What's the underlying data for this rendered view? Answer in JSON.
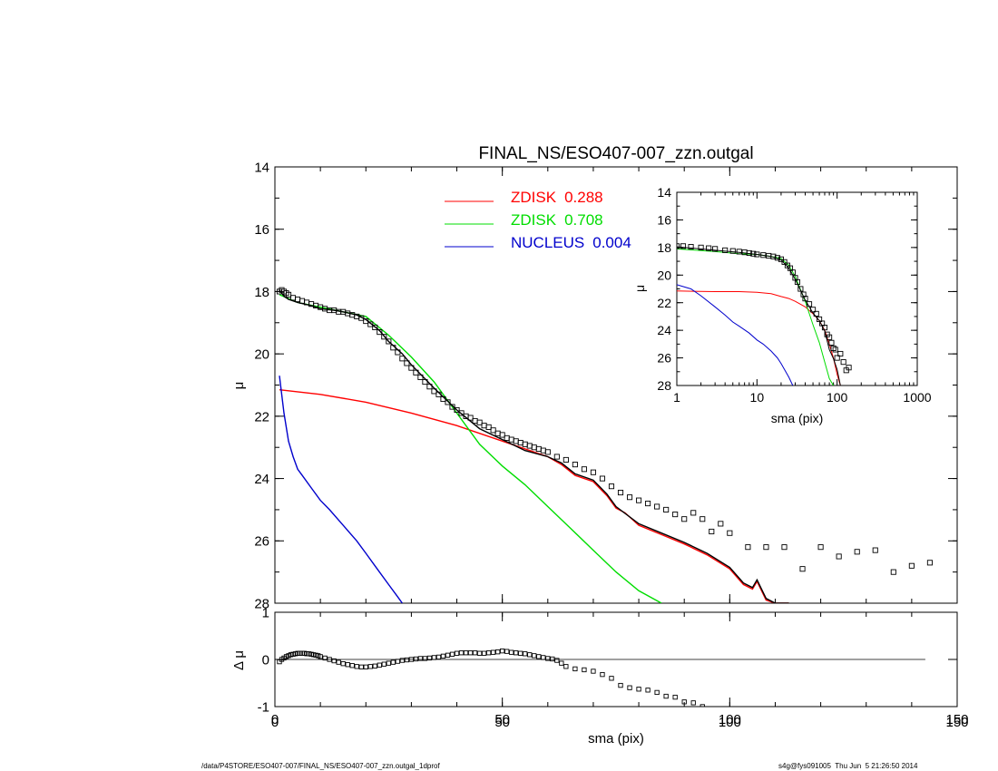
{
  "chart_data": [
    {
      "id": "main",
      "type": "line",
      "title": "FINAL_NS/ESO407-007_zzn.outgal",
      "xlabel": "",
      "ylabel": "μ",
      "xlim": [
        0,
        150
      ],
      "ylim": [
        28,
        14
      ],
      "xticks": [
        "0",
        "50",
        "100",
        "150"
      ],
      "yticks": [
        "14",
        "16",
        "18",
        "20",
        "22",
        "24",
        "26",
        "28"
      ],
      "legend": [
        {
          "label": "ZDISK",
          "value": "0.288",
          "color": "#ff0000"
        },
        {
          "label": "ZDISK",
          "value": "0.708",
          "color": "#00dd00"
        },
        {
          "label": "NUCLEUS",
          "value": "0.004",
          "color": "#0000cc"
        }
      ],
      "series": [
        {
          "color": "#ff0000",
          "style": "line",
          "x": [
            1,
            10,
            20,
            30,
            40,
            50,
            60,
            63,
            66,
            70,
            73,
            75,
            77,
            80,
            85,
            90,
            95,
            100,
            103,
            105,
            106,
            108,
            110,
            112,
            113
          ],
          "y": [
            21.15,
            21.3,
            21.55,
            21.9,
            22.3,
            22.8,
            23.3,
            23.55,
            23.9,
            24.1,
            24.55,
            24.95,
            25.1,
            25.5,
            25.8,
            26.1,
            26.45,
            26.9,
            27.4,
            27.55,
            27.3,
            27.9,
            28.0,
            28.0,
            28.0
          ]
        },
        {
          "color": "#00dd00",
          "style": "line",
          "x": [
            1,
            5,
            10,
            15,
            20,
            25,
            30,
            35,
            40,
            45,
            50,
            55,
            60,
            65,
            70,
            75,
            80,
            85
          ],
          "y": [
            18.1,
            18.35,
            18.5,
            18.65,
            18.8,
            19.4,
            20.1,
            20.9,
            21.9,
            22.9,
            23.6,
            24.2,
            24.9,
            25.6,
            26.3,
            27.0,
            27.6,
            28.0
          ]
        },
        {
          "color": "#0000cc",
          "style": "line",
          "x": [
            1,
            2,
            3,
            4,
            5,
            6,
            8,
            10,
            12,
            15,
            18,
            20,
            22,
            25,
            27,
            28
          ],
          "y": [
            20.7,
            21.9,
            22.8,
            23.3,
            23.7,
            23.9,
            24.3,
            24.7,
            25.0,
            25.5,
            26.0,
            26.4,
            26.8,
            27.4,
            27.8,
            28.0
          ]
        },
        {
          "color": "#000000",
          "style": "line",
          "x": [
            1,
            2,
            3,
            5,
            8,
            10,
            13,
            15,
            18,
            20,
            23,
            25,
            28,
            30,
            35,
            40,
            45,
            50,
            55,
            60,
            63,
            66,
            70,
            73,
            75,
            80,
            85,
            90,
            95,
            100,
            103,
            105,
            106,
            108,
            110,
            112,
            113
          ],
          "y": [
            17.95,
            18.15,
            18.25,
            18.35,
            18.45,
            18.55,
            18.6,
            18.65,
            18.75,
            18.9,
            19.25,
            19.6,
            20.0,
            20.35,
            21.1,
            21.8,
            22.4,
            22.75,
            23.1,
            23.3,
            23.5,
            23.85,
            24.05,
            24.5,
            24.9,
            25.45,
            25.75,
            26.05,
            26.4,
            26.85,
            27.35,
            27.5,
            27.25,
            27.85,
            28.0,
            28.0,
            28.0
          ]
        },
        {
          "color": "#000000",
          "style": "markers",
          "x": [
            1,
            1.5,
            2,
            2.5,
            3,
            4,
            5,
            6,
            7,
            8,
            9,
            10,
            11,
            12,
            13,
            14,
            15,
            16,
            17,
            18,
            19,
            20,
            21,
            22,
            23,
            24,
            25,
            26,
            27,
            28,
            29,
            30,
            31,
            32,
            33,
            34,
            35,
            36,
            37,
            38,
            39,
            40,
            41,
            42,
            43,
            44,
            45,
            46,
            47,
            48,
            49,
            50,
            51,
            52,
            53,
            54,
            55,
            56,
            57,
            58,
            59,
            60,
            62,
            64,
            66,
            68,
            70,
            72,
            74,
            76,
            78,
            80,
            82,
            84,
            86,
            88,
            90,
            92,
            94,
            96,
            98,
            100,
            104,
            108,
            112,
            116,
            120,
            124,
            128,
            132,
            136,
            140,
            144
          ],
          "y": [
            18.0,
            17.95,
            18.0,
            18.05,
            18.1,
            18.2,
            18.25,
            18.3,
            18.35,
            18.4,
            18.45,
            18.5,
            18.55,
            18.6,
            18.6,
            18.65,
            18.65,
            18.7,
            18.75,
            18.8,
            18.85,
            18.95,
            19.05,
            19.15,
            19.3,
            19.45,
            19.6,
            19.8,
            19.95,
            20.15,
            20.3,
            20.45,
            20.6,
            20.75,
            20.9,
            21.05,
            21.2,
            21.3,
            21.45,
            21.55,
            21.7,
            21.8,
            21.9,
            22.0,
            22.05,
            22.15,
            22.2,
            22.3,
            22.35,
            22.45,
            22.55,
            22.6,
            22.7,
            22.75,
            22.8,
            22.85,
            22.9,
            22.95,
            23.0,
            23.05,
            23.1,
            23.15,
            23.3,
            23.4,
            23.55,
            23.7,
            23.8,
            24.0,
            24.25,
            24.45,
            24.6,
            24.7,
            24.8,
            24.9,
            25.0,
            25.15,
            25.3,
            25.1,
            25.3,
            25.7,
            25.45,
            25.75,
            26.2,
            26.2,
            26.2,
            26.9,
            26.2,
            26.5,
            26.35,
            26.3,
            27.0,
            26.8,
            26.7
          ]
        }
      ]
    },
    {
      "id": "residual",
      "type": "scatter",
      "xlabel": "sma (pix)",
      "ylabel": "Δ μ",
      "xlim": [
        0,
        150
      ],
      "ylim": [
        -1,
        1
      ],
      "yticks": [
        "-1",
        "0",
        "1"
      ],
      "series": [
        {
          "color": "#000000",
          "style": "markers",
          "x": [
            1,
            1.5,
            2,
            2.5,
            3,
            3.5,
            4,
            4.5,
            5,
            5.5,
            6,
            6.5,
            7,
            7.5,
            8,
            8.5,
            9,
            9.5,
            10,
            11,
            12,
            13,
            14,
            15,
            16,
            17,
            18,
            19,
            20,
            21,
            22,
            23,
            24,
            25,
            26,
            27,
            28,
            29,
            30,
            31,
            32,
            33,
            34,
            35,
            36,
            37,
            38,
            39,
            40,
            41,
            42,
            43,
            44,
            45,
            46,
            47,
            48,
            49,
            50,
            51,
            52,
            53,
            54,
            55,
            56,
            57,
            58,
            59,
            60,
            61,
            62,
            63,
            64,
            66,
            68,
            70,
            72,
            74,
            76,
            78,
            80,
            82,
            84,
            86,
            88,
            90,
            92,
            94
          ],
          "y": [
            -0.05,
            0.0,
            0.03,
            0.06,
            0.08,
            0.1,
            0.11,
            0.12,
            0.13,
            0.13,
            0.13,
            0.13,
            0.12,
            0.12,
            0.11,
            0.1,
            0.09,
            0.08,
            0.06,
            0.03,
            0.0,
            -0.03,
            -0.06,
            -0.09,
            -0.11,
            -0.13,
            -0.15,
            -0.16,
            -0.16,
            -0.15,
            -0.14,
            -0.12,
            -0.1,
            -0.08,
            -0.06,
            -0.04,
            -0.02,
            -0.01,
            0.0,
            0.01,
            0.02,
            0.02,
            0.03,
            0.04,
            0.05,
            0.07,
            0.09,
            0.11,
            0.13,
            0.14,
            0.14,
            0.14,
            0.14,
            0.13,
            0.13,
            0.14,
            0.15,
            0.16,
            0.18,
            0.17,
            0.15,
            0.14,
            0.13,
            0.12,
            0.1,
            0.08,
            0.06,
            0.04,
            0.02,
            0.01,
            -0.02,
            -0.08,
            -0.15,
            -0.2,
            -0.22,
            -0.25,
            -0.32,
            -0.4,
            -0.55,
            -0.6,
            -0.63,
            -0.65,
            -0.7,
            -0.78,
            -0.8,
            -0.9,
            -0.92,
            -1.0
          ]
        }
      ]
    },
    {
      "id": "inset",
      "type": "line",
      "xlabel": "sma (pix)",
      "ylabel": "μ",
      "xscale": "log",
      "xlim": [
        1,
        1000
      ],
      "ylim": [
        28,
        14
      ],
      "xticks": [
        "1",
        "10",
        "100",
        "1000"
      ],
      "yticks": [
        "14",
        "16",
        "18",
        "20",
        "22",
        "24",
        "26",
        "28"
      ],
      "series": [
        {
          "color": "#ff0000",
          "style": "line",
          "x": [
            1,
            3,
            6,
            10,
            15,
            20,
            25,
            30,
            40,
            50,
            60,
            70,
            80,
            90,
            100,
            110
          ],
          "y": [
            21.15,
            21.2,
            21.2,
            21.25,
            21.35,
            21.55,
            21.7,
            21.9,
            22.3,
            22.8,
            23.3,
            24.0,
            25.0,
            26.0,
            27.2,
            28.0
          ]
        },
        {
          "color": "#00dd00",
          "style": "line",
          "x": [
            1,
            3,
            6,
            10,
            15,
            20,
            25,
            30,
            40,
            50,
            60,
            70,
            80,
            90
          ],
          "y": [
            18.1,
            18.3,
            18.45,
            18.5,
            18.65,
            18.8,
            19.3,
            20.1,
            21.9,
            23.6,
            24.9,
            26.3,
            27.5,
            28.0
          ]
        },
        {
          "color": "#0000cc",
          "style": "line",
          "x": [
            1,
            1.5,
            2,
            3,
            4,
            5,
            6,
            8,
            10,
            12,
            15,
            18,
            20,
            25,
            28
          ],
          "y": [
            20.7,
            21.0,
            21.5,
            22.3,
            22.9,
            23.4,
            23.7,
            24.2,
            24.7,
            25.0,
            25.5,
            26.0,
            26.4,
            27.4,
            28.0
          ]
        },
        {
          "color": "#000000",
          "style": "line",
          "x": [
            1,
            3,
            6,
            10,
            15,
            20,
            25,
            30,
            40,
            50,
            60,
            70,
            80,
            90,
            100,
            110
          ],
          "y": [
            17.95,
            18.2,
            18.35,
            18.5,
            18.65,
            18.9,
            19.5,
            20.3,
            21.8,
            22.75,
            23.3,
            24.05,
            25.4,
            26.05,
            26.85,
            28.0
          ]
        },
        {
          "color": "#000000",
          "style": "markers",
          "x": [
            1,
            1.2,
            1.5,
            2,
            2.5,
            3,
            4,
            5,
            6,
            7,
            8,
            9,
            10,
            12,
            14,
            16,
            18,
            20,
            22,
            24,
            26,
            28,
            30,
            32,
            35,
            38,
            40,
            45,
            50,
            55,
            60,
            65,
            70,
            75,
            80,
            85,
            90,
            95,
            100,
            110,
            120,
            130,
            140
          ],
          "y": [
            17.9,
            17.9,
            17.95,
            18.0,
            18.05,
            18.1,
            18.2,
            18.25,
            18.3,
            18.35,
            18.4,
            18.45,
            18.5,
            18.55,
            18.6,
            18.65,
            18.75,
            18.85,
            19.05,
            19.3,
            19.5,
            19.8,
            20.2,
            20.5,
            21.0,
            21.4,
            21.7,
            22.1,
            22.5,
            22.8,
            23.2,
            23.5,
            23.8,
            24.3,
            24.5,
            24.9,
            25.3,
            25.4,
            26.0,
            25.7,
            26.3,
            26.9,
            26.7
          ]
        }
      ]
    }
  ],
  "footer": {
    "path": "/data/P4STORE/ESO407-007/FINAL_NS/ESO407-007_zzn.outgal_1dprof",
    "stamp": "s4g@fys091005  Thu Jun  5 21:26:50 2014"
  }
}
